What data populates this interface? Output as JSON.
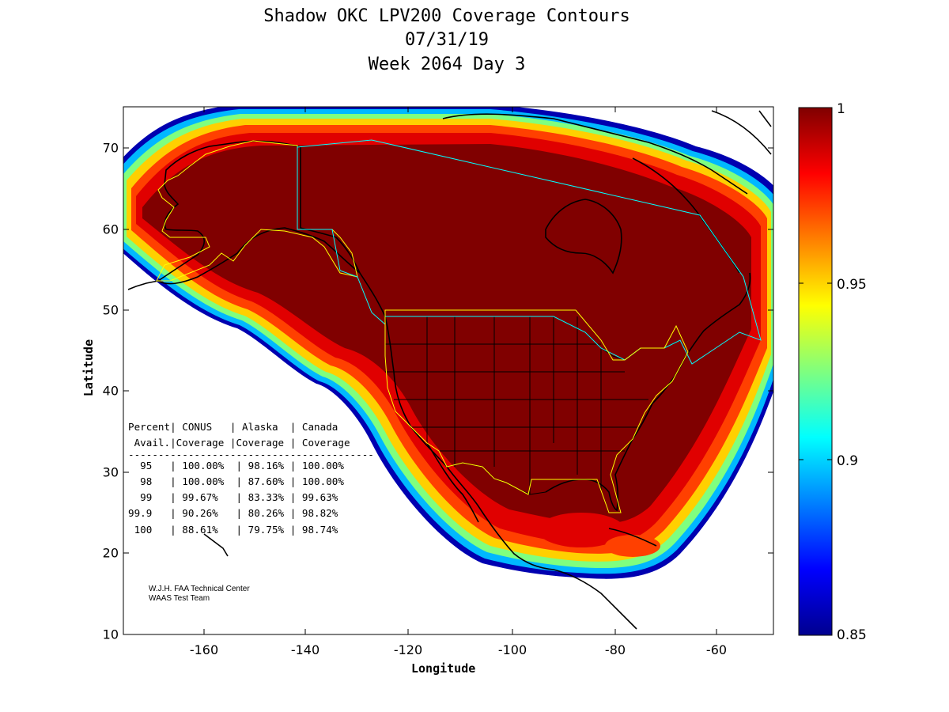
{
  "title": {
    "line1": "Shadow OKC LPV200 Coverage Contours",
    "line2": "07/31/19",
    "line3": "Week 2064 Day 3"
  },
  "axes": {
    "xlabel": "Longitude",
    "ylabel": "Latitude",
    "xlim": [
      -175,
      -50
    ],
    "ylim": [
      10,
      75
    ],
    "xticks": [
      "-160",
      "-140",
      "-120",
      "-100",
      "-80",
      "-60"
    ],
    "yticks": [
      "70",
      "60",
      "50",
      "40",
      "30",
      "20",
      "10"
    ]
  },
  "colorbar": {
    "range": [
      0.85,
      1
    ],
    "ticks": [
      "1",
      "0.95",
      "0.9",
      "0.85"
    ],
    "colormap": "jet"
  },
  "table": {
    "header1": "Percent| CONUS   | Alaska  | Canada",
    "header2": " Avail.|Coverage |Coverage | Coverage",
    "rule": "-----------------------------------------",
    "rows": [
      "  95   | 100.00%  | 98.16% | 100.00%",
      "  98   | 100.00%  | 87.60% | 100.00%",
      "  99   | 99.67%   | 83.33% | 99.63%",
      "99.9   | 90.26%   | 80.26% | 98.82%",
      " 100   | 88.61%   | 79.75% | 98.74%"
    ]
  },
  "credit": {
    "line1": "W.J.H. FAA Technical Center",
    "line2": "WAAS Test Team"
  },
  "colors": {
    "dark_red": "#800000",
    "boundary_yellow": "#ffff00",
    "boundary_cyan": "#00ffff"
  }
}
